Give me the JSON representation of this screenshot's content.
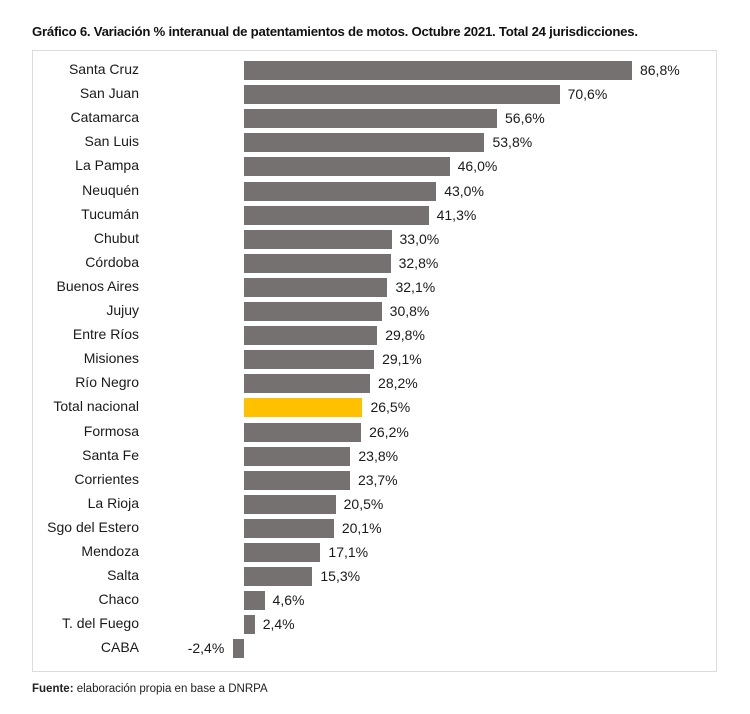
{
  "title": "Gráfico 6. Variación % interanual de patentamientos de motos. Octubre 2021. Total 24 jurisdicciones.",
  "source": {
    "label": "Fuente:",
    "text": " elaboración propia en base a DNRPA"
  },
  "colors": {
    "bar": "#767171",
    "highlight": "#ffc000"
  },
  "chart_data": {
    "type": "bar",
    "orientation": "horizontal",
    "title": "Gráfico 6. Variación % interanual de patentamientos de motos. Octubre 2021. Total 24 jurisdicciones.",
    "xlabel": "",
    "ylabel": "",
    "unit": "%",
    "grid": false,
    "legend": null,
    "highlight": "Total nacional",
    "categories": [
      "Santa Cruz",
      "San Juan",
      "Catamarca",
      "San Luis",
      "La Pampa",
      "Neuquén",
      "Tucumán",
      "Chubut",
      "Córdoba",
      "Buenos Aires",
      "Jujuy",
      "Entre Ríos",
      "Misiones",
      "Río Negro",
      "Total nacional",
      "Formosa",
      "Santa Fe",
      "Corrientes",
      "La Rioja",
      "Sgo del Estero",
      "Mendoza",
      "Salta",
      "Chaco",
      "T. del Fuego",
      "CABA"
    ],
    "values": [
      86.8,
      70.6,
      56.6,
      53.8,
      46.0,
      43.0,
      41.3,
      33.0,
      32.8,
      32.1,
      30.8,
      29.8,
      29.1,
      28.2,
      26.5,
      26.2,
      23.8,
      23.7,
      20.5,
      20.1,
      17.1,
      15.3,
      4.6,
      2.4,
      -2.4
    ],
    "labels": [
      "86,8%",
      "70,6%",
      "56,6%",
      "53,8%",
      "46,0%",
      "43,0%",
      "41,3%",
      "33,0%",
      "32,8%",
      "32,1%",
      "30,8%",
      "29,8%",
      "29,1%",
      "28,2%",
      "26,5%",
      "26,2%",
      "23,8%",
      "23,7%",
      "20,5%",
      "20,1%",
      "17,1%",
      "15,3%",
      "4,6%",
      "2,4%",
      "-2,4%"
    ]
  }
}
